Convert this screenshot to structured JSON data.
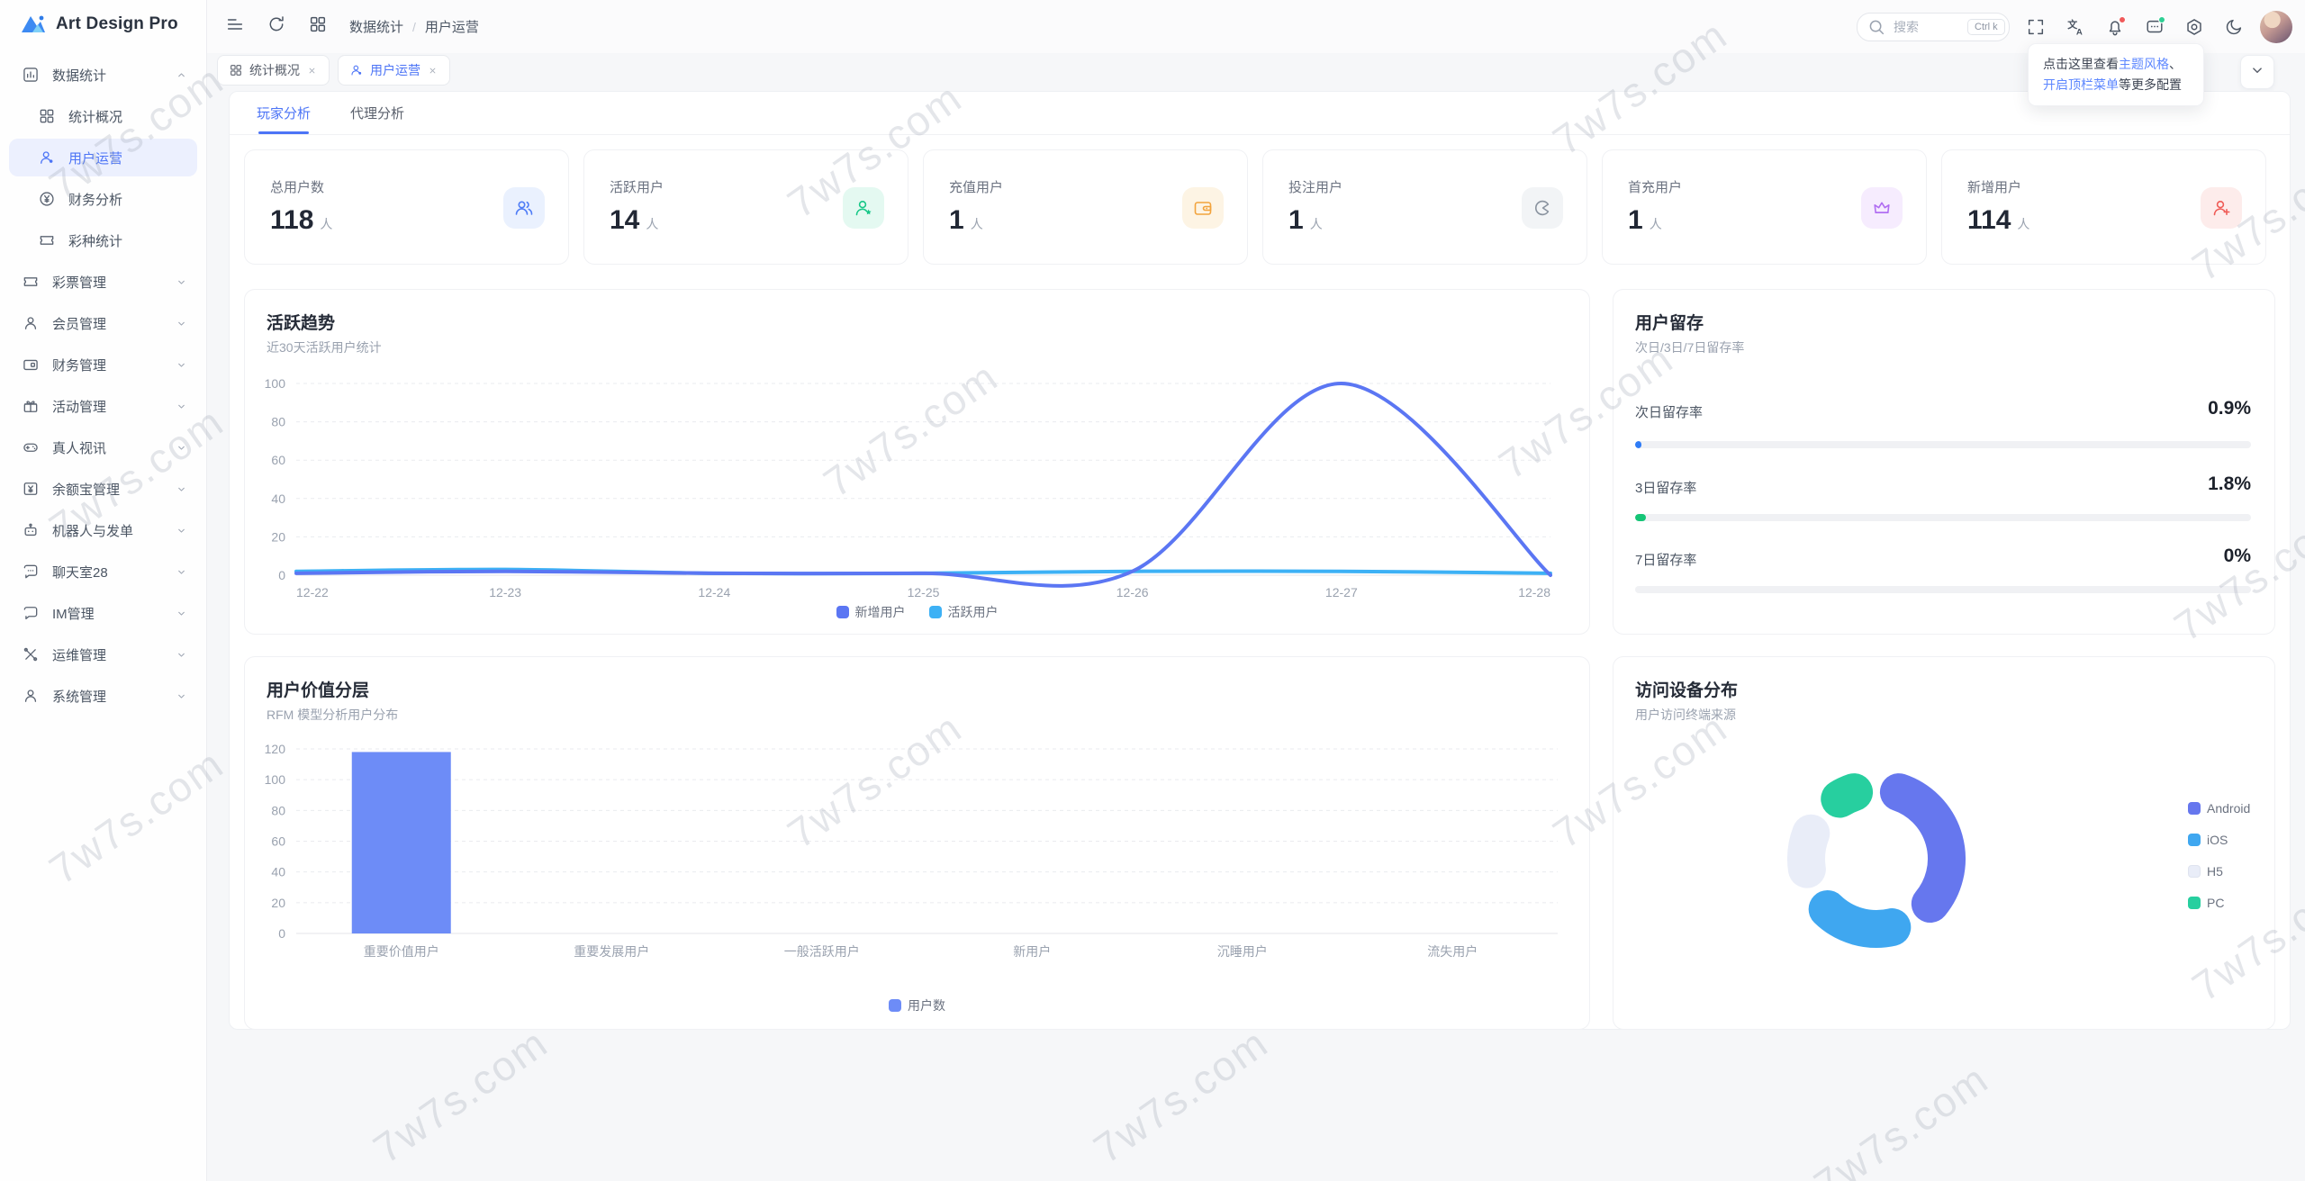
{
  "app": {
    "name": "Art Design Pro"
  },
  "watermark": {
    "text": "7w7s.com"
  },
  "sidebar": {
    "items": [
      {
        "label": "数据统计",
        "icon": "chart",
        "expanded": true,
        "children": [
          {
            "label": "统计概况",
            "icon": "grid"
          },
          {
            "label": "用户运营",
            "icon": "usercheck",
            "active": true
          },
          {
            "label": "财务分析",
            "icon": "yen"
          },
          {
            "label": "彩种统计",
            "icon": "ticket"
          }
        ]
      },
      {
        "label": "彩票管理",
        "icon": "ticket"
      },
      {
        "label": "会员管理",
        "icon": "user"
      },
      {
        "label": "财务管理",
        "icon": "card"
      },
      {
        "label": "活动管理",
        "icon": "gift"
      },
      {
        "label": "真人视讯",
        "icon": "gamepad"
      },
      {
        "label": "余额宝管理",
        "icon": "safe"
      },
      {
        "label": "机器人与发单",
        "icon": "robot"
      },
      {
        "label": "聊天室28",
        "icon": "chatdots"
      },
      {
        "label": "IM管理",
        "icon": "chat"
      },
      {
        "label": "运维管理",
        "icon": "tools"
      },
      {
        "label": "系统管理",
        "icon": "user"
      }
    ]
  },
  "topbar": {
    "breadcrumb": [
      "数据统计",
      "用户运营"
    ],
    "search": {
      "placeholder": "搜索",
      "shortcut": "Ctrl k"
    },
    "icons": [
      {
        "name": "fullscreen"
      },
      {
        "name": "translate"
      },
      {
        "name": "bell",
        "badge": "#f05a5a"
      },
      {
        "name": "message",
        "badge": "#2ecf94"
      },
      {
        "name": "gear"
      },
      {
        "name": "moon"
      }
    ]
  },
  "tabs": [
    {
      "label": "统计概况",
      "icon": "grid",
      "active": false
    },
    {
      "label": "用户运营",
      "icon": "usercheck",
      "active": true
    }
  ],
  "tooltip": {
    "runs": [
      {
        "t": "点击这里查看",
        "link": false
      },
      {
        "t": "主题风格",
        "link": true
      },
      {
        "t": "、",
        "link": false
      },
      {
        "t": "开启顶栏菜单",
        "link": true
      },
      {
        "t": "等更多配置",
        "link": false
      }
    ]
  },
  "content_tabs": [
    {
      "label": "玩家分析",
      "active": true
    },
    {
      "label": "代理分析",
      "active": false
    }
  ],
  "stats": [
    {
      "label": "总用户数",
      "value": "118",
      "unit": "人",
      "icon": "users",
      "color": "#4e7cf6",
      "bg": "#eaf1fe"
    },
    {
      "label": "活跃用户",
      "value": "14",
      "unit": "人",
      "icon": "userstar",
      "color": "#17c787",
      "bg": "#e4f9f1"
    },
    {
      "label": "充值用户",
      "value": "1",
      "unit": "人",
      "icon": "wallet",
      "color": "#f2a33c",
      "bg": "#fdf4e4"
    },
    {
      "label": "投注用户",
      "value": "1",
      "unit": "人",
      "icon": "pacman",
      "color": "#8a939f",
      "bg": "#f2f4f6"
    },
    {
      "label": "首充用户",
      "value": "1",
      "unit": "人",
      "icon": "crown",
      "color": "#b06df2",
      "bg": "#f6ecfe"
    },
    {
      "label": "新增用户",
      "value": "114",
      "unit": "人",
      "icon": "userplus",
      "color": "#ef5b56",
      "bg": "#fdeceb"
    }
  ],
  "chart_data": [
    {
      "id": "activity_trend",
      "type": "line",
      "title": "活跃趋势",
      "subtitle": "近30天活跃用户统计",
      "categories": [
        "12-22",
        "12-23",
        "12-24",
        "12-25",
        "12-26",
        "12-27",
        "12-28"
      ],
      "series": [
        {
          "name": "新增用户",
          "color": "#5b76f3",
          "values": [
            1,
            2,
            1,
            1,
            2,
            100,
            0
          ]
        },
        {
          "name": "活跃用户",
          "color": "#3db1f5",
          "values": [
            2,
            3,
            1,
            1,
            2,
            2,
            1
          ]
        }
      ],
      "ylim": [
        0,
        100
      ],
      "yticks": [
        0,
        20,
        40,
        60,
        80,
        100
      ],
      "grid": "dashed-horizontal",
      "legend_position": "bottom",
      "smooth": true
    },
    {
      "id": "retention",
      "type": "table",
      "title": "用户留存",
      "subtitle": "次日/3日/7日留存率",
      "rows": [
        {
          "label": "次日留存率",
          "value": "0.9%",
          "percent": 0.9,
          "color": "#2f7cf6"
        },
        {
          "label": "3日留存率",
          "value": "1.8%",
          "percent": 1.8,
          "color": "#15c576"
        },
        {
          "label": "7日留存率",
          "value": "0%",
          "percent": 0,
          "color": "#2f7cf6"
        }
      ]
    },
    {
      "id": "user_value_layers",
      "type": "bar",
      "title": "用户价值分层",
      "subtitle": "RFM 模型分析用户分布",
      "categories": [
        "重要价值用户",
        "重要发展用户",
        "一般活跃用户",
        "新用户",
        "沉睡用户",
        "流失用户"
      ],
      "series": [
        {
          "name": "用户数",
          "color": "#6d8cf7",
          "values": [
            118,
            0,
            0,
            0,
            0,
            0
          ]
        }
      ],
      "ylim": [
        0,
        120
      ],
      "yticks": [
        0,
        20,
        40,
        60,
        80,
        100,
        120
      ],
      "grid": "dashed-horizontal",
      "legend_position": "bottom"
    },
    {
      "id": "device_distribution",
      "type": "pie",
      "title": "访问设备分布",
      "subtitle": "用户访问终端来源",
      "legend_position": "right",
      "donut": true,
      "segments": [
        {
          "name": "Android",
          "percent": 42,
          "color": "#6677ee"
        },
        {
          "name": "iOS",
          "percent": 26,
          "color": "#3fa7f0"
        },
        {
          "name": "H5",
          "percent": 18,
          "color": "#e9edf8"
        },
        {
          "name": "PC",
          "percent": 13,
          "color": "#27cf9f"
        }
      ]
    }
  ]
}
